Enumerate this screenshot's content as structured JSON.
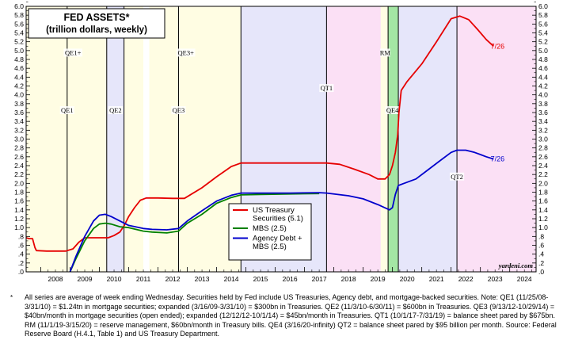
{
  "chart_data": {
    "type": "line",
    "title": "FED ASSETS*",
    "subtitle": "(trillion dollars, weekly)",
    "xlabel": "",
    "ylabel": "",
    "xlim": [
      2007.5,
      2024.9
    ],
    "ylim": [
      0,
      6.0
    ],
    "ytick_step": 0.2,
    "y_ticks": [
      ".0",
      ".2",
      ".4",
      ".6",
      ".8",
      "1.0",
      "1.2",
      "1.4",
      "1.6",
      "1.8",
      "2.0",
      "2.2",
      "2.4",
      "2.6",
      "2.8",
      "3.0",
      "3.2",
      "3.4",
      "3.6",
      "3.8",
      "4.0",
      "4.2",
      "4.4",
      "4.6",
      "4.8",
      "5.0",
      "5.2",
      "5.4",
      "5.6",
      "5.8",
      "6.0"
    ],
    "x_ticks": [
      "2008",
      "2009",
      "2010",
      "2011",
      "2012",
      "2013",
      "2014",
      "2015",
      "2016",
      "2017",
      "2018",
      "2019",
      "2020",
      "2021",
      "2022",
      "2023",
      "2024"
    ],
    "bands": [
      {
        "start": 2007.5,
        "end": 2008.9,
        "color": "#FFFDE3"
      },
      {
        "start": 2008.9,
        "end": 2010.25,
        "color": "#FFFDE3"
      },
      {
        "start": 2010.25,
        "end": 2010.84,
        "color": "#E6E6FA"
      },
      {
        "start": 2010.84,
        "end": 2011.5,
        "color": "#FFFDE3"
      },
      {
        "start": 2011.5,
        "end": 2011.7,
        "color": "#FFFFFF"
      },
      {
        "start": 2011.7,
        "end": 2012.7,
        "color": "#FFFDE3"
      },
      {
        "start": 2012.7,
        "end": 2014.83,
        "color": "#FFFDE3"
      },
      {
        "start": 2014.83,
        "end": 2017.75,
        "color": "#E6E6FA"
      },
      {
        "start": 2017.75,
        "end": 2019.6,
        "color": "#FBE0F5"
      },
      {
        "start": 2019.6,
        "end": 2019.85,
        "color": "#FFFDE3"
      },
      {
        "start": 2019.85,
        "end": 2020.2,
        "color": "#A4E6A4"
      },
      {
        "start": 2020.2,
        "end": 2022.2,
        "color": "#E6E6FA"
      },
      {
        "start": 2022.2,
        "end": 2024.9,
        "color": "#FBE0F5"
      }
    ],
    "vlines": [
      2008.9,
      2010.25,
      2010.84,
      2012.7,
      2014.83,
      2017.75,
      2019.85,
      2020.2,
      2022.2
    ],
    "period_labels": [
      {
        "text": "QE1+",
        "x": 2009.1,
        "y": 4.9
      },
      {
        "text": "QE1",
        "x": 2008.9,
        "y": 3.6
      },
      {
        "text": "QE2",
        "x": 2010.55,
        "y": 3.6
      },
      {
        "text": "QE3+",
        "x": 2012.95,
        "y": 4.9
      },
      {
        "text": "QE3",
        "x": 2012.7,
        "y": 3.6
      },
      {
        "text": "QT1",
        "x": 2017.75,
        "y": 4.1
      },
      {
        "text": "RM",
        "x": 2019.75,
        "y": 4.9
      },
      {
        "text": "QE4",
        "x": 2020.0,
        "y": 3.6
      },
      {
        "text": "QT2",
        "x": 2022.2,
        "y": 2.1
      }
    ],
    "legend": {
      "position": "middle-center",
      "entries": [
        "US Treasury Securities (5.1)",
        "MBS (2.5)",
        "Agency Debt + MBS (2.5)"
      ]
    },
    "end_labels": [
      {
        "text": "7/26",
        "x": 2023.35,
        "y": 5.1,
        "color": "#E60000"
      },
      {
        "text": "7/26",
        "x": 2023.35,
        "y": 2.55,
        "color": "#0000CC"
      }
    ],
    "watermark": "yardeni.com",
    "series": [
      {
        "name": "US Treasury Securities (5.1)",
        "color": "#E60000",
        "x": [
          2007.5,
          2007.6,
          2007.72,
          2007.8,
          2007.85,
          2008.2,
          2008.6,
          2008.85,
          2009.1,
          2009.3,
          2009.5,
          2009.9,
          2010.3,
          2010.5,
          2010.7,
          2010.85,
          2011.0,
          2011.2,
          2011.4,
          2011.6,
          2012.0,
          2012.5,
          2012.9,
          2013.5,
          2014.0,
          2014.5,
          2014.83,
          2015.5,
          2016.5,
          2017.5,
          2017.75,
          2018.2,
          2018.7,
          2019.2,
          2019.5,
          2019.75,
          2019.9,
          2020.0,
          2020.1,
          2020.18,
          2020.22,
          2020.3,
          2020.5,
          2021.0,
          2021.5,
          2022.0,
          2022.3,
          2022.6,
          2022.9,
          2023.2,
          2023.45
        ],
        "values": [
          0.77,
          0.75,
          0.75,
          0.55,
          0.48,
          0.47,
          0.47,
          0.47,
          0.52,
          0.67,
          0.77,
          0.77,
          0.77,
          0.82,
          0.9,
          1.05,
          1.25,
          1.45,
          1.62,
          1.67,
          1.67,
          1.66,
          1.66,
          1.9,
          2.15,
          2.38,
          2.46,
          2.46,
          2.46,
          2.46,
          2.46,
          2.43,
          2.32,
          2.2,
          2.1,
          2.1,
          2.2,
          2.4,
          2.7,
          3.1,
          3.6,
          4.1,
          4.3,
          4.7,
          5.2,
          5.72,
          5.78,
          5.7,
          5.48,
          5.25,
          5.1
        ]
      },
      {
        "name": "MBS (2.5)",
        "color": "#008000",
        "x": [
          2009.0,
          2009.2,
          2009.5,
          2009.8,
          2010.0,
          2010.2,
          2010.4,
          2010.7,
          2011.0,
          2011.5,
          2011.8,
          2012.3,
          2012.7,
          2013.0,
          2013.5,
          2014.0,
          2014.5,
          2014.83,
          2015.5,
          2016.5,
          2017.5
        ],
        "values": [
          0.0,
          0.3,
          0.7,
          0.98,
          1.08,
          1.1,
          1.08,
          1.02,
          1.0,
          0.92,
          0.9,
          0.88,
          0.92,
          1.1,
          1.3,
          1.55,
          1.68,
          1.74,
          1.75,
          1.76,
          1.77
        ]
      },
      {
        "name": "Agency Debt + MBS (2.5)",
        "color": "#0000CC",
        "x": [
          2009.0,
          2009.2,
          2009.5,
          2009.8,
          2010.0,
          2010.2,
          2010.4,
          2010.7,
          2011.0,
          2011.5,
          2011.8,
          2012.3,
          2012.7,
          2013.0,
          2013.5,
          2014.0,
          2014.5,
          2014.83,
          2015.5,
          2016.5,
          2017.5,
          2017.75,
          2018.5,
          2019.0,
          2019.5,
          2019.9,
          2020.0,
          2020.1,
          2020.2,
          2020.4,
          2020.8,
          2021.2,
          2021.6,
          2022.0,
          2022.2,
          2022.5,
          2022.8,
          2023.0,
          2023.2,
          2023.45
        ],
        "values": [
          0.0,
          0.35,
          0.8,
          1.15,
          1.28,
          1.3,
          1.25,
          1.15,
          1.05,
          0.98,
          0.96,
          0.95,
          0.98,
          1.15,
          1.38,
          1.6,
          1.73,
          1.78,
          1.78,
          1.78,
          1.79,
          1.78,
          1.72,
          1.65,
          1.52,
          1.4,
          1.45,
          1.75,
          1.95,
          2.0,
          2.1,
          2.3,
          2.5,
          2.7,
          2.75,
          2.75,
          2.7,
          2.65,
          2.6,
          2.55
        ]
      }
    ]
  },
  "footnote": {
    "marker": "*",
    "text": "All series are average of week ending Wednesday. Securities held by Fed include US Treasuries, Agency debt, and mortgage-backed securities. Note: QE1 (11/25/08-3/31/10) = $1.24tn in mortgage securities; expanded (3/16/09-3/31/10) = $300bn in Treasuries. QE2 (11/3/10-6/30/11) = $600bn in Treasuries. QE3 (9/13/12-10/29/14) = $40bn/month in mortgage securities (open ended); expanded (12/12/12-10/1/14) = $45bn/month in Treasuries. QT1 (10/1/17-7/31/19) = balance sheet pared by $675bn. RM (11/1/19-3/15/20) = reserve management, $60bn/month in Treasury bills. QE4 (3/16/20-infinity) QT2 = balance sheet pared by $95 billion per month. Source: Federal Reserve Board (H.4.1, Table 1) and US Treasury Department."
  }
}
